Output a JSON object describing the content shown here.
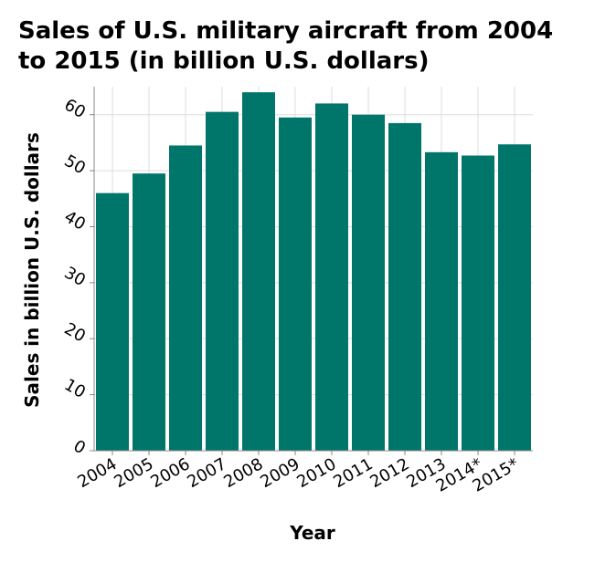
{
  "chart_data": {
    "type": "bar",
    "title_lines": [
      "Sales of U.S. military aircraft from 2004",
      "to 2015 (in billion U.S. dollars)"
    ],
    "xlabel": "Year",
    "ylabel": "Sales in billion U.S. dollars",
    "categories": [
      "2004",
      "2005",
      "2006",
      "2007",
      "2008",
      "2009",
      "2010",
      "2011",
      "2012",
      "2013",
      "2014*",
      "2015*"
    ],
    "values": [
      46,
      49.5,
      54.5,
      60.5,
      64,
      59.5,
      62,
      60,
      58.5,
      53.3,
      52.7,
      54.7
    ],
    "ylim": [
      0,
      65
    ],
    "yticks": [
      "0",
      "10",
      "20",
      "30",
      "40",
      "50",
      "60"
    ],
    "grid": true,
    "legend": "none",
    "bar_color": "#00756a"
  }
}
